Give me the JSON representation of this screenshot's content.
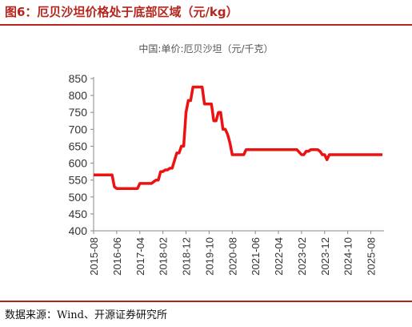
{
  "figure": {
    "title": "图6：厄贝沙坦价格处于底部区域（元/kg）",
    "source": "数据来源：Wind、开源证券研究所"
  },
  "chart_data": {
    "type": "line",
    "title": "中国:单价:厄贝沙坦（元/千克）",
    "xlabel": "",
    "ylabel": "",
    "ylim": [
      400,
      850
    ],
    "yticks": [
      400,
      450,
      500,
      550,
      600,
      650,
      700,
      750,
      800,
      850
    ],
    "xticks": [
      "2015-08",
      "2016-06",
      "2017-04",
      "2018-02",
      "2018-12",
      "2019-10",
      "2020-08",
      "2021-06",
      "2022-04",
      "2023-02",
      "2023-12",
      "2024-10",
      "2025-08"
    ],
    "grid": false,
    "legend": "none",
    "series_color": "#ee1111",
    "series": [
      {
        "x": [
          "2015-08",
          "2016-04",
          "2016-05",
          "2016-06",
          "2017-03",
          "2017-04",
          "2017-09",
          "2017-10",
          "2017-11",
          "2017-12",
          "2018-01",
          "2018-02",
          "2018-03",
          "2018-04",
          "2018-05",
          "2018-06",
          "2018-08",
          "2018-09",
          "2018-10",
          "2018-11",
          "2018-12",
          "2019-01",
          "2019-02",
          "2019-03",
          "2019-05",
          "2019-06",
          "2019-07",
          "2019-08",
          "2019-10",
          "2019-11",
          "2019-12",
          "2020-01",
          "2020-02",
          "2020-03",
          "2020-04",
          "2020-05",
          "2020-06",
          "2020-07",
          "2020-08",
          "2020-09",
          "2021-01",
          "2021-02",
          "2021-03",
          "2022-11",
          "2022-12",
          "2023-02",
          "2023-03",
          "2023-04",
          "2023-05",
          "2023-06",
          "2023-07",
          "2023-09",
          "2023-10",
          "2023-11",
          "2023-12",
          "2024-01",
          "2024-02",
          "2026-01"
        ],
        "values": [
          565,
          565,
          530,
          525,
          525,
          540,
          540,
          545,
          550,
          550,
          575,
          575,
          580,
          580,
          585,
          585,
          630,
          630,
          650,
          650,
          750,
          785,
          785,
          825,
          825,
          825,
          825,
          775,
          775,
          775,
          725,
          725,
          750,
          750,
          700,
          700,
          685,
          660,
          625,
          625,
          625,
          640,
          640,
          640,
          640,
          625,
          625,
          635,
          635,
          640,
          640,
          640,
          635,
          625,
          625,
          610,
          625,
          625
        ]
      }
    ]
  }
}
